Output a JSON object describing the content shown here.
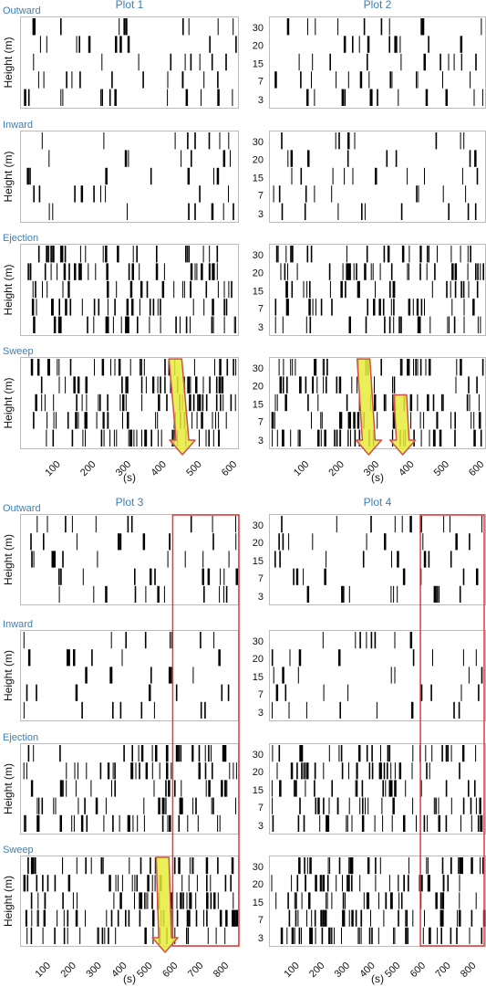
{
  "figure": {
    "height_tick_labels": [
      "30",
      "20",
      "15",
      "7",
      "3"
    ],
    "height_levels_m": [
      30,
      20,
      15,
      7,
      3
    ],
    "ylabel": "Height (m)",
    "xlabel": "(s)",
    "categories": [
      "Outward",
      "Inward",
      "Ejection",
      "Sweep"
    ],
    "highlight_color": "#e03a3a",
    "arrow_fill": "#e8ec3a",
    "arrow_stroke": "#d0504a"
  },
  "chart_data": [
    {
      "type": "event-raster",
      "title": "Plot 1",
      "xlabel": "(s)",
      "ylabel": "Height (m)",
      "xlim": [
        0,
        620
      ],
      "xticks": [
        100,
        200,
        300,
        400,
        500,
        600
      ],
      "ylevels": [
        30,
        20,
        15,
        7,
        3
      ],
      "panels": [
        "Outward",
        "Inward",
        "Ejection",
        "Sweep"
      ],
      "annotations": [
        {
          "type": "arrow",
          "x_start": 440,
          "x_end": 460,
          "from_level": 30,
          "to_level": 3
        }
      ],
      "highlight_region": null
    },
    {
      "type": "event-raster",
      "title": "Plot 2",
      "xlabel": "(s)",
      "ylabel": "",
      "xlim": [
        0,
        620
      ],
      "xticks": [
        100,
        200,
        300,
        400,
        500,
        600
      ],
      "ylevels": [
        30,
        20,
        15,
        7,
        3
      ],
      "panels": [
        "Outward",
        "Inward",
        "Ejection",
        "Sweep"
      ],
      "annotations": [
        {
          "type": "arrow",
          "x_start": 270,
          "x_end": 285,
          "from_level": 30,
          "to_level": 3
        },
        {
          "type": "arrow",
          "x_start": 375,
          "x_end": 382,
          "from_level": 15,
          "to_level": 3
        }
      ],
      "highlight_region": null
    },
    {
      "type": "event-raster",
      "title": "Plot 3",
      "xlabel": "(s)",
      "ylabel": "Height (m)",
      "xlim": [
        0,
        860
      ],
      "xticks": [
        100,
        200,
        300,
        400,
        500,
        600,
        700,
        800
      ],
      "ylevels": [
        30,
        20,
        15,
        7,
        3
      ],
      "panels": [
        "Outward",
        "Inward",
        "Ejection",
        "Sweep"
      ],
      "annotations": [
        {
          "type": "arrow",
          "x_start": 560,
          "x_end": 570,
          "from_level": 30,
          "to_level": 3
        }
      ],
      "highlight_region": [
        600,
        860
      ]
    },
    {
      "type": "event-raster",
      "title": "Plot 4",
      "xlabel": "(s)",
      "ylabel": "",
      "xlim": [
        0,
        860
      ],
      "xticks": [
        100,
        200,
        300,
        400,
        500,
        600,
        700,
        800
      ],
      "ylevels": [
        30,
        20,
        15,
        7,
        3
      ],
      "panels": [
        "Outward",
        "Inward",
        "Ejection",
        "Sweep"
      ],
      "annotations": [],
      "highlight_region": [
        600,
        860
      ]
    }
  ]
}
